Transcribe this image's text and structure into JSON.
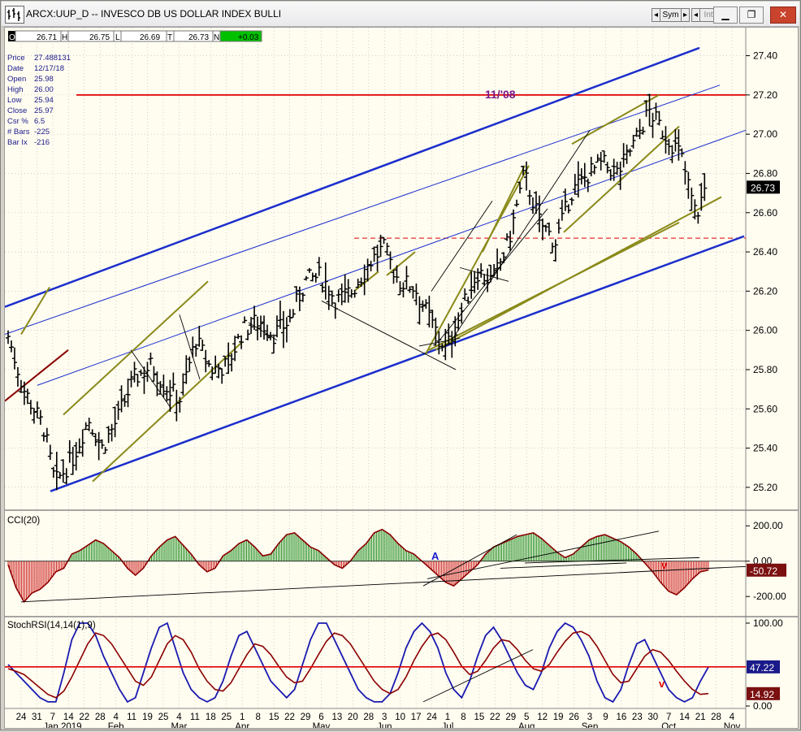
{
  "window": {
    "title": "ARCX:UUP_D -- INVESCO DB US DOLLAR INDEX BULLI",
    "sym_label": "Sym",
    "intv_label": "Intv"
  },
  "ohlc_bar": {
    "o_label": "O",
    "o_value": "26.71",
    "h_label": "H",
    "h_value": "26.75",
    "l_label": "L",
    "l_value": "26.69",
    "c_label": "T",
    "c_value": "26.73",
    "n_label": "N",
    "n_value": "+0.03"
  },
  "data_window": [
    {
      "label": "Price",
      "value": "27.488131"
    },
    {
      "label": "Date",
      "value": "12/17/18"
    },
    {
      "label": "Open",
      "value": "25.98"
    },
    {
      "label": "High",
      "value": "26.00"
    },
    {
      "label": "Low",
      "value": "25.94"
    },
    {
      "label": "Close",
      "value": "25.97"
    },
    {
      "label": "Csr %",
      "value": "6.5"
    },
    {
      "label": "# Bars",
      "value": "-225"
    },
    {
      "label": "Bar Ix",
      "value": "-216"
    }
  ],
  "colors": {
    "background": "#fffcf0",
    "price_bars": "#000000",
    "blue_channel": "#1a2ecc",
    "olive_lines": "#8a8a1a",
    "red_line": "#e00000",
    "dark_red_line": "#8b0000",
    "cci_pos": "#1a8a1a",
    "cci_neg": "#cc1a1a",
    "cci_line": "#8b0000",
    "stoch_k": "#1a1ab0",
    "stoch_d": "#8b0000"
  },
  "annotations": {
    "resistance_label": "11/'08",
    "cci_v_mark": "v",
    "cci_a_mark": "A",
    "stoch_v_mark": "v"
  },
  "chart_data": [
    {
      "type": "ohlc",
      "y_ticks": [
        25.2,
        25.4,
        25.6,
        25.8,
        26.0,
        26.2,
        26.4,
        26.6,
        26.8,
        27.0,
        27.2,
        27.4
      ],
      "ylim": [
        25.1,
        27.51
      ],
      "last_value": 26.73,
      "last_value_label": "26.73",
      "resistance_level": 27.2,
      "support_dashed_level": 26.47,
      "x_ticks": [
        "24",
        "31",
        "7",
        "14",
        "22",
        "28",
        "4",
        "11",
        "19",
        "25",
        "4",
        "11",
        "18",
        "25",
        "1",
        "8",
        "15",
        "22",
        "29",
        "6",
        "13",
        "20",
        "28",
        "3",
        "10",
        "17",
        "24",
        "1",
        "8",
        "15",
        "22",
        "29",
        "5",
        "12",
        "19",
        "26",
        "3",
        "9",
        "16",
        "23",
        "30",
        "7",
        "14",
        "21",
        "28",
        "4"
      ],
      "x_months": [
        "Jan 2019",
        "Feb",
        "Mar",
        "Apr",
        "May",
        "Jun",
        "Jul",
        "Aug",
        "Sep",
        "Oct",
        "Nov"
      ],
      "close_path_dates": [
        "2018-12-17",
        "2018-12-24",
        "2019-01-02",
        "2019-01-07",
        "2019-01-15",
        "2019-01-22",
        "2019-01-28",
        "2019-02-04",
        "2019-02-11",
        "2019-02-19",
        "2019-02-25",
        "2019-03-04",
        "2019-03-11",
        "2019-03-18",
        "2019-03-25",
        "2019-04-01",
        "2019-04-08",
        "2019-04-15",
        "2019-04-22",
        "2019-04-29",
        "2019-05-06",
        "2019-05-13",
        "2019-05-20",
        "2019-05-28",
        "2019-06-03",
        "2019-06-10",
        "2019-06-17",
        "2019-06-24",
        "2019-07-01",
        "2019-07-08",
        "2019-07-15",
        "2019-07-22",
        "2019-07-29",
        "2019-08-05",
        "2019-08-12",
        "2019-08-19",
        "2019-08-26",
        "2019-09-03",
        "2019-09-09",
        "2019-09-16",
        "2019-09-23",
        "2019-09-30",
        "2019-10-07",
        "2019-10-14",
        "2019-10-21",
        "2019-10-25"
      ],
      "close_path": [
        25.97,
        25.7,
        25.5,
        25.22,
        25.35,
        25.55,
        25.4,
        25.55,
        25.75,
        25.82,
        25.72,
        25.65,
        25.95,
        25.8,
        25.82,
        26.0,
        26.05,
        25.98,
        26.05,
        26.25,
        26.28,
        26.15,
        26.2,
        26.35,
        26.42,
        26.25,
        26.22,
        26.05,
        25.9,
        26.1,
        26.3,
        26.25,
        26.45,
        26.8,
        26.55,
        26.45,
        26.7,
        26.8,
        26.85,
        26.8,
        26.95,
        27.12,
        27.0,
        26.9,
        26.58,
        26.73
      ]
    },
    {
      "type": "histogram",
      "title": "CCI(20)",
      "y_ticks": [
        200,
        0,
        -200
      ],
      "y_tick_labels": [
        "200.00",
        "0.00",
        "-200.00"
      ],
      "last_value": -50.72,
      "last_value_label": "-50.72",
      "values": [
        -20,
        -150,
        -230,
        -180,
        -160,
        -120,
        -60,
        -40,
        40,
        60,
        90,
        120,
        100,
        60,
        20,
        -40,
        -80,
        -40,
        30,
        80,
        120,
        140,
        90,
        40,
        -20,
        -60,
        -40,
        30,
        60,
        100,
        120,
        80,
        30,
        40,
        100,
        150,
        160,
        120,
        80,
        60,
        20,
        -20,
        -40,
        0,
        60,
        100,
        160,
        180,
        150,
        100,
        60,
        40,
        0,
        -40,
        -80,
        -120,
        -140,
        -100,
        -60,
        -20,
        40,
        80,
        100,
        120,
        140,
        150,
        160,
        130,
        90,
        50,
        20,
        40,
        80,
        120,
        140,
        150,
        130,
        110,
        80,
        40,
        -10,
        -60,
        -120,
        -170,
        -190,
        -150,
        -100,
        -60,
        -50
      ]
    },
    {
      "type": "line",
      "title": "StochRSI(14,14(1),9)",
      "y_ticks": [
        100,
        0
      ],
      "y_tick_labels": [
        "100.00",
        "0.00"
      ],
      "ref_level": 47.22,
      "ref_label": "47.22",
      "last_value_label": "14.92",
      "series": [
        {
          "values": [
            50,
            40,
            30,
            20,
            10,
            5,
            5,
            40,
            80,
            100,
            100,
            85,
            60,
            40,
            20,
            5,
            10,
            40,
            70,
            95,
            100,
            70,
            40,
            20,
            10,
            5,
            10,
            30,
            60,
            85,
            90,
            70,
            50,
            30,
            20,
            10,
            20,
            50,
            80,
            100,
            100,
            80,
            60,
            40,
            20,
            10,
            5,
            5,
            15,
            40,
            70,
            90,
            100,
            90,
            70,
            40,
            20,
            10,
            30,
            60,
            85,
            95,
            80,
            60,
            40,
            25,
            20,
            40,
            70,
            90,
            100,
            95,
            80,
            60,
            30,
            10,
            5,
            20,
            50,
            75,
            80,
            60,
            40,
            20,
            10,
            5,
            10,
            30,
            47
          ]
        },
        {
          "values": [
            45,
            42,
            38,
            30,
            22,
            14,
            10,
            18,
            35,
            55,
            75,
            88,
            85,
            75,
            60,
            45,
            30,
            25,
            35,
            55,
            75,
            85,
            80,
            65,
            45,
            30,
            20,
            18,
            28,
            45,
            62,
            75,
            72,
            62,
            48,
            35,
            28,
            30,
            45,
            62,
            78,
            88,
            85,
            75,
            60,
            45,
            30,
            20,
            15,
            20,
            35,
            55,
            72,
            85,
            88,
            80,
            65,
            48,
            38,
            42,
            55,
            70,
            80,
            78,
            68,
            55,
            45,
            42,
            50,
            65,
            78,
            88,
            90,
            85,
            72,
            55,
            38,
            28,
            30,
            45,
            60,
            68,
            65,
            55,
            42,
            30,
            20,
            14,
            15
          ]
        }
      ]
    }
  ]
}
